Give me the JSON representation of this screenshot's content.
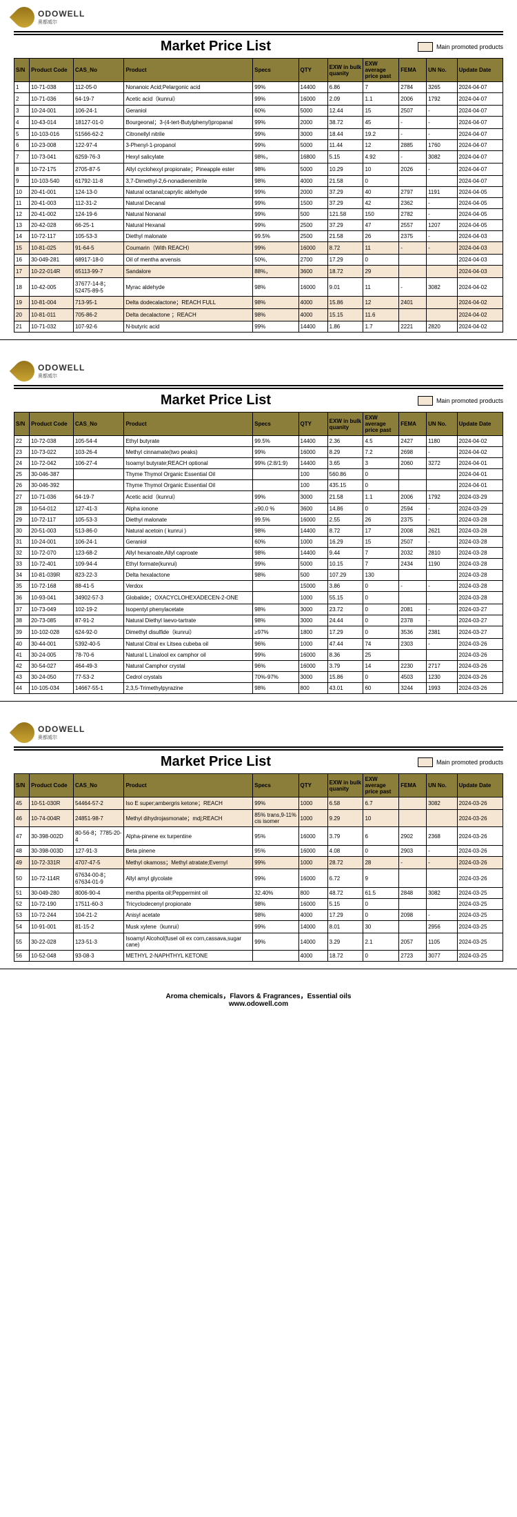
{
  "title": "Market Price List",
  "legend": "Main promoted products",
  "brand": "ODOWELL",
  "footer1": "Aroma chemicals，Flavors & Fragrances，Essential oils",
  "footer2": "www.odowell.com",
  "headers": [
    "S/N",
    "Product Code",
    "CAS_No",
    "Product",
    "Specs",
    "QTY",
    "EXW in bulk quanity",
    "EXW average price past",
    "FEMA",
    "UN No.",
    "Update Date"
  ],
  "pages": [
    {
      "rows": [
        {
          "hl": 0,
          "c": [
            "1",
            "10-71-038",
            "112-05-0",
            "Nonanoic Acid;Pelargonic acid",
            "99%",
            "14400",
            "6.86",
            "7",
            "2784",
            "3265",
            "2024-04-07"
          ]
        },
        {
          "hl": 0,
          "c": [
            "2",
            "10-71-036",
            "64-19-7",
            "Acetic acid（kunrui）",
            "99%",
            "16000",
            "2.09",
            "1.1",
            "2006",
            "1792",
            "2024-04-07"
          ]
        },
        {
          "hl": 0,
          "c": [
            "3",
            "10-24-001",
            "106-24-1",
            "Geraniol",
            "60%",
            "5000",
            "12.44",
            "15",
            "2507",
            "-",
            "2024-04-07"
          ]
        },
        {
          "hl": 0,
          "c": [
            "4",
            "10-43-014",
            "18127-01-0",
            "Bourgeonal；3-(4-tert-Butylphenyl)propanal",
            "99%",
            "2000",
            "38.72",
            "45",
            "-",
            "-",
            "2024-04-07"
          ]
        },
        {
          "hl": 0,
          "c": [
            "5",
            "10-103-016",
            "51566-62-2",
            "Citronellyl nitrile",
            "99%",
            "3000",
            "18.44",
            "19.2",
            "-",
            "-",
            "2024-04-07"
          ]
        },
        {
          "hl": 0,
          "c": [
            "6",
            "10-23-008",
            "122-97-4",
            "3-Phenyl-1-propanol",
            "99%",
            "5000",
            "11.44",
            "12",
            "2885",
            "1760",
            "2024-04-07"
          ]
        },
        {
          "hl": 0,
          "c": [
            "7",
            "10-73-041",
            "6259-76-3",
            "Hexyl salicylate",
            "98%，",
            "16800",
            "5.15",
            "4.92",
            "-",
            "3082",
            "2024-04-07"
          ]
        },
        {
          "hl": 0,
          "c": [
            "8",
            "10-72-175",
            "2705-87-5",
            "Allyl cyclohexyl propionate；Pineapple ester",
            "98%",
            "5000",
            "10.29",
            "10",
            "2026",
            "-",
            "2024-04-07"
          ]
        },
        {
          "hl": 0,
          "c": [
            "9",
            "10-103-540",
            "61792-11-8",
            "3,7-Dimethyl-2,6-nonadienenitrile",
            "98%",
            "4000",
            "21.58",
            "0",
            "",
            "",
            "2024-04-07"
          ]
        },
        {
          "hl": 0,
          "c": [
            "10",
            "20-41-001",
            "124-13-0",
            "Natural octanal;caprylic aldehyde",
            "99%",
            "2000",
            "37.29",
            "40",
            "2797",
            "1191",
            "2024-04-05"
          ]
        },
        {
          "hl": 0,
          "c": [
            "11",
            "20-41-003",
            "112-31-2",
            "Natural Decanal",
            "99%",
            "1500",
            "37.29",
            "42",
            "2362",
            "-",
            "2024-04-05"
          ]
        },
        {
          "hl": 0,
          "c": [
            "12",
            "20-41-002",
            "124-19-6",
            "Natural Nonanal",
            "99%",
            "500",
            "121.58",
            "150",
            "2782",
            "-",
            "2024-04-05"
          ]
        },
        {
          "hl": 0,
          "c": [
            "13",
            "20-42-028",
            "66-25-1",
            "Natural Hexanal",
            "99%",
            "2500",
            "37.29",
            "47",
            "2557",
            "1207",
            "2024-04-05"
          ]
        },
        {
          "hl": 0,
          "c": [
            "14",
            "10-72-117",
            "105-53-3",
            "Diethyl malonate",
            "99.5%",
            "2500",
            "21.58",
            "26",
            "2375",
            "-",
            "2024-04-03"
          ]
        },
        {
          "hl": 1,
          "c": [
            "15",
            "10-81-025",
            "91-64-5",
            "Coumarin（With REACH）",
            "99%",
            "16000",
            "8.72",
            "11",
            "-",
            "-",
            "2024-04-03"
          ]
        },
        {
          "hl": 0,
          "c": [
            "16",
            "30-049-281",
            "68917-18-0",
            "Oil of mentha arvensis",
            "50%,",
            "2700",
            "17.29",
            "0",
            "",
            "",
            "2024-04-03"
          ]
        },
        {
          "hl": 1,
          "c": [
            "17",
            "10-22-014R",
            "65113-99-7",
            "Sandalore",
            "88%，",
            "3600",
            "18.72",
            "29",
            "",
            "",
            "2024-04-03"
          ]
        },
        {
          "hl": 0,
          "c": [
            "18",
            "10-42-005",
            "37677-14-8；52475-89-5",
            "Myrac aldehyde",
            "98%",
            "16000",
            "9.01",
            "11",
            "-",
            "3082",
            "2024-04-02"
          ]
        },
        {
          "hl": 1,
          "c": [
            "19",
            "10-81-004",
            "713-95-1",
            "Delta dodecalactone；REACH FULL",
            "98%",
            "4000",
            "15.86",
            "12",
            "2401",
            "",
            "2024-04-02"
          ]
        },
        {
          "hl": 1,
          "c": [
            "20",
            "10-81-011",
            "705-86-2",
            "Delta decalactone ；REACH",
            "98%",
            "4000",
            "15.15",
            "11.6",
            "",
            "",
            "2024-04-02"
          ]
        },
        {
          "hl": 0,
          "c": [
            "21",
            "10-71-032",
            "107-92-6",
            "N-butyric acid",
            "99%",
            "14400",
            "1.86",
            "1.7",
            "2221",
            "2820",
            "2024-04-02"
          ]
        }
      ]
    },
    {
      "rows": [
        {
          "hl": 0,
          "c": [
            "22",
            "10-72-038",
            "105-54-4",
            "Ethyl butyrate",
            "99.5%",
            "14400",
            "2.36",
            "4.5",
            "2427",
            "1180",
            "2024-04-02"
          ]
        },
        {
          "hl": 0,
          "c": [
            "23",
            "10-73-022",
            "103-26-4",
            "Methyl cinnamate(two peaks)",
            "99%",
            "16000",
            "8.29",
            "7.2",
            "2698",
            "-",
            "2024-04-02"
          ]
        },
        {
          "hl": 0,
          "c": [
            "24",
            "10-72-042",
            "106-27-4",
            "Isoamyl butyrate;REACH optional",
            "99% (2:8/1:9)",
            "14400",
            "3.65",
            "3",
            "2060",
            "3272",
            "2024-04-01"
          ]
        },
        {
          "hl": 0,
          "c": [
            "25",
            "30-046-387",
            "",
            "Thyme Thymol Organic Essential Oil",
            "",
            "100",
            "560.86",
            "0",
            "",
            "",
            "2024-04-01"
          ]
        },
        {
          "hl": 0,
          "c": [
            "26",
            "30-046-392",
            "",
            "Thyme Thymol Organic Essential Oil",
            "",
            "100",
            "435.15",
            "0",
            "",
            "",
            "2024-04-01"
          ]
        },
        {
          "hl": 0,
          "c": [
            "27",
            "10-71-036",
            "64-19-7",
            "Acetic acid（kunrui）",
            "99%",
            "3000",
            "21.58",
            "1.1",
            "2006",
            "1792",
            "2024-03-29"
          ]
        },
        {
          "hl": 0,
          "c": [
            "28",
            "10-54-012",
            "127-41-3",
            "Alpha ionone",
            "≥90.0 %",
            "3600",
            "14.86",
            "0",
            "2594",
            "-",
            "2024-03-29"
          ]
        },
        {
          "hl": 0,
          "c": [
            "29",
            "10-72-117",
            "105-53-3",
            "Diethyl malonate",
            "99.5%",
            "16000",
            "2.55",
            "26",
            "2375",
            "-",
            "2024-03-28"
          ]
        },
        {
          "hl": 0,
          "c": [
            "30",
            "20-51-003",
            "513-86-0",
            "Natural acetoin ( kunrui )",
            "98%",
            "14400",
            "8.72",
            "17",
            "2008",
            "2621",
            "2024-03-28"
          ]
        },
        {
          "hl": 0,
          "c": [
            "31",
            "10-24-001",
            "106-24-1",
            "Geraniol",
            "60%",
            "1000",
            "16.29",
            "15",
            "2507",
            "-",
            "2024-03-28"
          ]
        },
        {
          "hl": 0,
          "c": [
            "32",
            "10-72-070",
            "123-68-2",
            "Allyl hexanoate,Allyl caproate",
            "98%",
            "14400",
            "9.44",
            "7",
            "2032",
            "2810",
            "2024-03-28"
          ]
        },
        {
          "hl": 0,
          "c": [
            "33",
            "10-72-401",
            "109-94-4",
            "Ethyl formate(kunrui)",
            "99%",
            "5000",
            "10.15",
            "7",
            "2434",
            "1190",
            "2024-03-28"
          ]
        },
        {
          "hl": 0,
          "c": [
            "34",
            "10-81-039R",
            "823-22-3",
            "Delta hexalactone",
            "98%",
            "500",
            "107.29",
            "130",
            "",
            "",
            "2024-03-28"
          ]
        },
        {
          "hl": 0,
          "c": [
            "35",
            "10-72-168",
            "88-41-5",
            "Verdox",
            "",
            "15000",
            "3.86",
            "0",
            "-",
            "-",
            "2024-03-28"
          ]
        },
        {
          "hl": 0,
          "c": [
            "36",
            "10-93-041",
            "34902-57-3",
            "Globalide；OXACYCLOHEXADECEN-2-ONE",
            "",
            "1000",
            "55.15",
            "0",
            "",
            "",
            "2024-03-28"
          ]
        },
        {
          "hl": 0,
          "c": [
            "37",
            "10-73-049",
            "102-19-2",
            "Isopentyl phenylacetate",
            "98%",
            "3000",
            "23.72",
            "0",
            "2081",
            "-",
            "2024-03-27"
          ]
        },
        {
          "hl": 0,
          "c": [
            "38",
            "20-73-085",
            "87-91-2",
            "Natural Diethyl laevo-tartrate",
            "98%",
            "3000",
            "24.44",
            "0",
            "2378",
            "-",
            "2024-03-27"
          ]
        },
        {
          "hl": 0,
          "c": [
            "39",
            "10-102-028",
            "624-92-0",
            "Dimethyl disulfide（kunrui）",
            "≥97%",
            "1800",
            "17.29",
            "0",
            "3536",
            "2381",
            "2024-03-27"
          ]
        },
        {
          "hl": 0,
          "c": [
            "40",
            "30-44-001",
            "5392-40-5",
            "Natural Citral ex Litsea cubeba oil",
            "96%",
            "1000",
            "47.44",
            "74",
            "2303",
            "-",
            "2024-03-26"
          ]
        },
        {
          "hl": 0,
          "c": [
            "41",
            "30-24-005",
            "78-70-6",
            "Natural L Linalool ex camphor oil",
            "99%",
            "16000",
            "8.36",
            "25",
            "",
            "",
            "2024-03-26"
          ]
        },
        {
          "hl": 0,
          "c": [
            "42",
            "30-54-027",
            "464-49-3",
            "Natural Camphor crystal",
            "96%",
            "16000",
            "3.79",
            "14",
            "2230",
            "2717",
            "2024-03-26"
          ]
        },
        {
          "hl": 0,
          "c": [
            "43",
            "30-24-050",
            "77-53-2",
            "Cedrol crystals",
            "70%-97%",
            "3000",
            "15.86",
            "0",
            "4503",
            "1230",
            "2024-03-26"
          ]
        },
        {
          "hl": 0,
          "c": [
            "44",
            "10-105-034",
            "14667-55-1",
            "2,3,5-Trimethylpyrazine",
            "98%",
            "800",
            "43.01",
            "60",
            "3244",
            "1993",
            "2024-03-26"
          ]
        }
      ]
    },
    {
      "rows": [
        {
          "hl": 1,
          "c": [
            "45",
            "10-51-030R",
            "54464-57-2",
            "Iso E super;ambergris ketone；REACH",
            "99%",
            "1000",
            "6.58",
            "6.7",
            "",
            "3082",
            "2024-03-26"
          ]
        },
        {
          "hl": 1,
          "c": [
            "46",
            "10-74-004R",
            "24851-98-7",
            "Methyl dihydrojasmonate；mdj;REACH",
            "85% trans,9-11% cis isomer",
            "1000",
            "9.29",
            "10",
            "",
            "",
            "2024-03-26"
          ]
        },
        {
          "hl": 0,
          "c": [
            "47",
            "30-398-002D",
            "80-56-8；7785-20-4",
            "Alpha-pinene ex turpentine",
            "95%",
            "16000",
            "3.79",
            "6",
            "2902",
            "2368",
            "2024-03-26"
          ]
        },
        {
          "hl": 0,
          "c": [
            "48",
            "30-398-003D",
            "127-91-3",
            "Beta pinene",
            "95%",
            "16000",
            "4.08",
            "0",
            "2903",
            "-",
            "2024-03-26"
          ]
        },
        {
          "hl": 1,
          "c": [
            "49",
            "10-72-331R",
            "4707-47-5",
            "Methyl okamoss；Methyl atratate;Evernyl",
            "99%",
            "1000",
            "28.72",
            "28",
            "-",
            "-",
            "2024-03-26"
          ]
        },
        {
          "hl": 0,
          "c": [
            "50",
            "10-72-114R",
            "67634-00-8；67634-01-9",
            "Allyl amyl glycolate",
            "99%",
            "16000",
            "6.72",
            "9",
            "",
            "",
            "2024-03-26"
          ]
        },
        {
          "hl": 0,
          "c": [
            "51",
            "30-049-280",
            "8006-90-4",
            "mentha piperita oil;Peppermint oil",
            "32.40%",
            "800",
            "48.72",
            "61.5",
            "2848",
            "3082",
            "2024-03-25"
          ]
        },
        {
          "hl": 0,
          "c": [
            "52",
            "10-72-190",
            "17511-60-3",
            "Tricyclodecenyl propionate",
            "98%",
            "16000",
            "5.15",
            "0",
            "",
            "",
            "2024-03-25"
          ]
        },
        {
          "hl": 0,
          "c": [
            "53",
            "10-72-244",
            "104-21-2",
            "Anisyl acetate",
            "98%",
            "4000",
            "17.29",
            "0",
            "2098",
            "-",
            "2024-03-25"
          ]
        },
        {
          "hl": 0,
          "c": [
            "54",
            "10-91-001",
            "81-15-2",
            "Musk xylene（kunrui）",
            "99%",
            "14000",
            "8.01",
            "30",
            "",
            "2956",
            "2024-03-25"
          ]
        },
        {
          "hl": 0,
          "c": [
            "55",
            "30-22-028",
            "123-51-3",
            "Isoamyl Alcohol(fusel oil ex corn,cassava,sugar cane)",
            "99%",
            "14000",
            "3.29",
            "2.1",
            "2057",
            "1105",
            "2024-03-25"
          ]
        },
        {
          "hl": 0,
          "c": [
            "56",
            "10-52-048",
            "93-08-3",
            "METHYL 2-NAPHTHYL KETONE",
            "",
            "4000",
            "18.72",
            "0",
            "2723",
            "3077",
            "2024-03-25"
          ]
        }
      ]
    }
  ]
}
